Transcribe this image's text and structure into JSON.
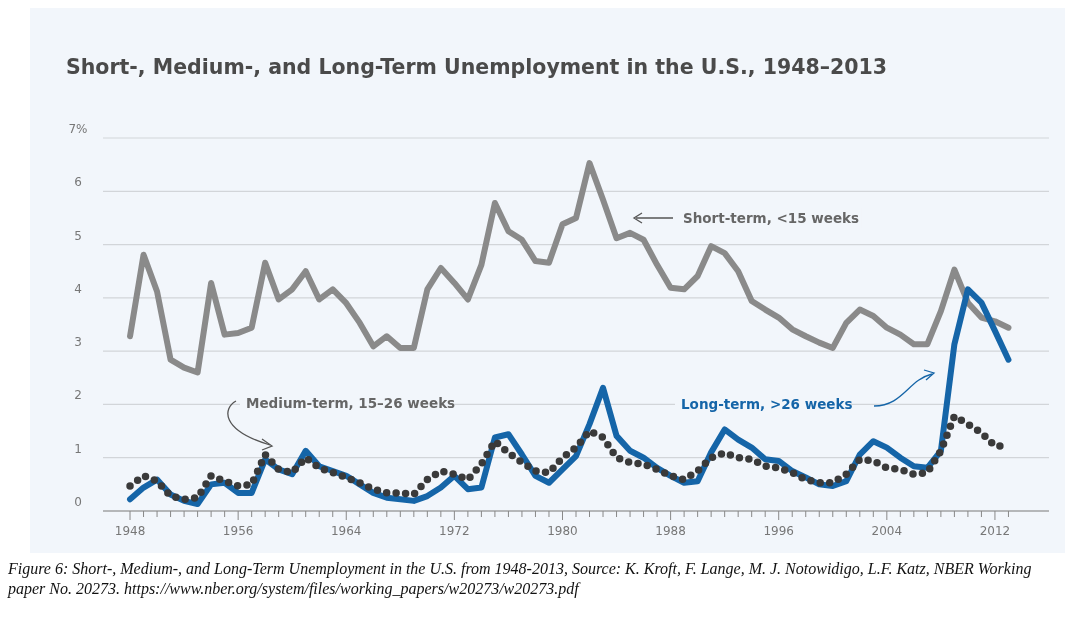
{
  "chart_data": {
    "type": "line",
    "title": "Short-, Medium-, and Long-Term Unemployment in the U.S., 1948–2013",
    "x": [
      1948,
      1949,
      1950,
      1951,
      1952,
      1953,
      1954,
      1955,
      1956,
      1957,
      1958,
      1959,
      1960,
      1961,
      1962,
      1963,
      1964,
      1965,
      1966,
      1967,
      1968,
      1969,
      1970,
      1971,
      1972,
      1973,
      1974,
      1975,
      1976,
      1977,
      1978,
      1979,
      1980,
      1981,
      1982,
      1983,
      1984,
      1985,
      1986,
      1987,
      1988,
      1989,
      1990,
      1991,
      1992,
      1993,
      1994,
      1995,
      1996,
      1997,
      1998,
      1999,
      2000,
      2001,
      2002,
      2003,
      2004,
      2005,
      2006,
      2007,
      2008,
      2009,
      2010,
      2011,
      2012,
      2013
    ],
    "series": [
      {
        "name": "Short-term, <15 weeks",
        "color": "#8a8a8a",
        "line_style": "solid",
        "values": [
          3.28,
          4.81,
          4.12,
          2.84,
          2.69,
          2.6,
          4.28,
          3.31,
          3.34,
          3.44,
          4.66,
          3.97,
          4.16,
          4.5,
          3.97,
          4.16,
          3.9,
          3.53,
          3.09,
          3.28,
          3.06,
          3.06,
          4.16,
          4.56,
          4.28,
          3.97,
          4.62,
          5.78,
          5.25,
          5.09,
          4.69,
          4.66,
          5.38,
          5.5,
          6.53,
          5.84,
          5.12,
          5.22,
          5.09,
          4.62,
          4.19,
          4.16,
          4.41,
          4.97,
          4.84,
          4.5,
          3.94,
          3.78,
          3.63,
          3.41,
          3.28,
          3.16,
          3.06,
          3.53,
          3.78,
          3.66,
          3.44,
          3.31,
          3.13,
          3.13,
          3.75,
          4.53,
          3.91,
          3.63,
          3.56,
          3.44
        ]
      },
      {
        "name": "Medium-term, 15–26 weeks",
        "color": "#3a3a3a",
        "line_style": "dotted",
        "values": [
          0.47,
          0.66,
          0.56,
          0.28,
          0.22,
          0.25,
          0.66,
          0.56,
          0.47,
          0.5,
          1.06,
          0.78,
          0.72,
          1.0,
          0.81,
          0.72,
          0.63,
          0.53,
          0.41,
          0.34,
          0.34,
          0.31,
          0.59,
          0.75,
          0.69,
          0.59,
          0.88,
          1.31,
          1.09,
          0.91,
          0.75,
          0.72,
          1.0,
          1.19,
          1.5,
          1.38,
          1.0,
          0.91,
          0.88,
          0.78,
          0.66,
          0.59,
          0.75,
          1.0,
          1.09,
          1.0,
          0.97,
          0.84,
          0.81,
          0.72,
          0.59,
          0.53,
          0.53,
          0.69,
          0.97,
          0.94,
          0.81,
          0.78,
          0.69,
          0.72,
          1.13,
          1.78,
          1.63,
          1.47,
          1.22,
          1.22
        ]
      },
      {
        "name": "Long-term, >26 weeks",
        "color": "#1565a8",
        "line_style": "solid",
        "values": [
          0.22,
          0.44,
          0.59,
          0.31,
          0.19,
          0.13,
          0.5,
          0.53,
          0.34,
          0.34,
          0.97,
          0.78,
          0.69,
          1.13,
          0.84,
          0.75,
          0.66,
          0.5,
          0.34,
          0.25,
          0.22,
          0.19,
          0.28,
          0.44,
          0.66,
          0.41,
          0.44,
          1.38,
          1.44,
          1.06,
          0.66,
          0.53,
          0.78,
          1.03,
          1.63,
          2.31,
          1.41,
          1.13,
          1.0,
          0.81,
          0.66,
          0.53,
          0.56,
          1.1,
          1.53,
          1.34,
          1.19,
          0.97,
          0.94,
          0.75,
          0.63,
          0.5,
          0.47,
          0.56,
          1.06,
          1.31,
          1.19,
          1.0,
          0.84,
          0.81,
          1.13,
          3.13,
          4.16,
          3.91,
          3.38,
          2.84
        ]
      }
    ],
    "xlim": [
      1946,
      2016
    ],
    "xticks": [
      1948,
      {
        "value": 1949,
        "label": null
      },
      {
        "value": 1950,
        "label": null
      },
      {
        "value": 1951,
        "label": null
      },
      {
        "value": 1952,
        "label": null
      },
      {
        "value": 1953,
        "label": null
      },
      {
        "value": 1954,
        "label": null
      },
      {
        "value": 1955,
        "label": null
      },
      1956,
      {
        "value": 1957,
        "label": null
      },
      {
        "value": 1958,
        "label": null
      },
      {
        "value": 1959,
        "label": null
      },
      {
        "value": 1960,
        "label": null
      },
      {
        "value": 1961,
        "label": null
      },
      {
        "value": 1962,
        "label": null
      },
      {
        "value": 1963,
        "label": null
      },
      1964,
      {
        "value": 1965,
        "label": null
      },
      {
        "value": 1966,
        "label": null
      },
      {
        "value": 1967,
        "label": null
      },
      {
        "value": 1968,
        "label": null
      },
      {
        "value": 1969,
        "label": null
      },
      {
        "value": 1970,
        "label": null
      },
      {
        "value": 1971,
        "label": null
      },
      1972,
      {
        "value": 1973,
        "label": null
      },
      {
        "value": 1974,
        "label": null
      },
      {
        "value": 1975,
        "label": null
      },
      {
        "value": 1976,
        "label": null
      },
      {
        "value": 1977,
        "label": null
      },
      {
        "value": 1978,
        "label": null
      },
      {
        "value": 1979,
        "label": null
      },
      1980,
      {
        "value": 1981,
        "label": null
      },
      {
        "value": 1982,
        "label": null
      },
      {
        "value": 1983,
        "label": null
      },
      {
        "value": 1984,
        "label": null
      },
      {
        "value": 1985,
        "label": null
      },
      {
        "value": 1986,
        "label": null
      },
      {
        "value": 1987,
        "label": null
      },
      1988,
      {
        "value": 1989,
        "label": null
      },
      {
        "value": 1990,
        "label": null
      },
      {
        "value": 1991,
        "label": null
      },
      {
        "value": 1992,
        "label": null
      },
      {
        "value": 1993,
        "label": null
      },
      {
        "value": 1994,
        "label": null
      },
      {
        "value": 1995,
        "label": null
      },
      1996,
      {
        "value": 1997,
        "label": null
      },
      {
        "value": 1998,
        "label": null
      },
      {
        "value": 1999,
        "label": null
      },
      {
        "value": 2000,
        "label": null
      },
      {
        "value": 2001,
        "label": null
      },
      {
        "value": 2002,
        "label": null
      },
      {
        "value": 2003,
        "label": null
      },
      2004,
      {
        "value": 2005,
        "label": null
      },
      {
        "value": 2006,
        "label": null
      },
      {
        "value": 2007,
        "label": null
      },
      {
        "value": 2008,
        "label": null
      },
      {
        "value": 2009,
        "label": null
      },
      {
        "value": 2010,
        "label": null
      },
      {
        "value": 2011,
        "label": null
      },
      2012,
      {
        "value": 2013,
        "label": null
      }
    ],
    "ylim": [
      0,
      7
    ],
    "yticks": [
      0,
      1,
      2,
      3,
      4,
      5,
      6,
      {
        "value": 7,
        "label": "7%"
      }
    ],
    "grid": "y",
    "marker": "none",
    "annotations": [
      "Figure 6: Short-, Medium-, and Long-Term Unemployment in the U.S. from 1948-2013, Source: K. Kroft, F. Lange, M. J. Notowidigo, L.F. Katz, NBER Working paper No. 20273. https://www.nber.org/system/files/working_papers/w20273/w20273.pdf"
    ]
  }
}
